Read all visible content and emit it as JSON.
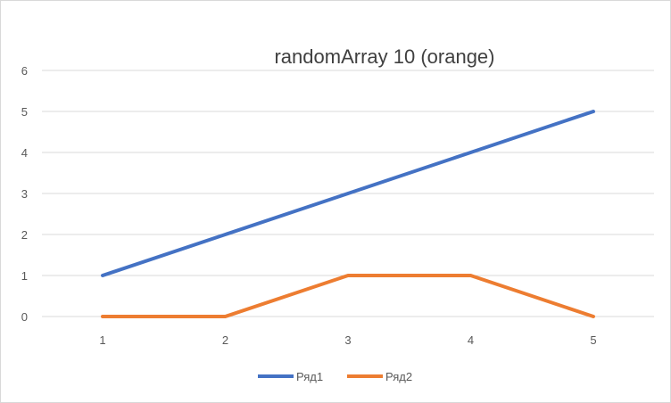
{
  "chart_data": {
    "type": "line",
    "title": "randomArray  10 (orange)",
    "x": [
      1,
      2,
      3,
      4,
      5
    ],
    "series": [
      {
        "name": "Ряд1",
        "values": [
          1,
          2,
          3,
          4,
          5
        ],
        "color": "#4472C4"
      },
      {
        "name": "Ряд2",
        "values": [
          0,
          0,
          1,
          1,
          0
        ],
        "color": "#ED7D31"
      }
    ],
    "ylim": [
      0,
      6
    ],
    "yticks": [
      0,
      1,
      2,
      3,
      4,
      5,
      6
    ],
    "grid": true,
    "legend_position": "bottom"
  },
  "colors": {
    "grid": "#d9d9d9",
    "axis_text": "#595959"
  }
}
